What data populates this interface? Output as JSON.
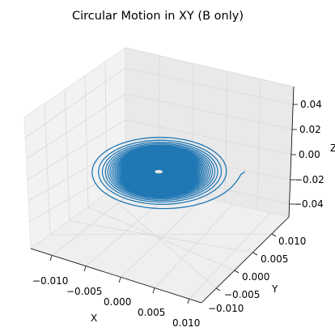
{
  "chart_data": {
    "type": "line",
    "projection": "3d",
    "title": "Circular Motion in XY (B only)",
    "xlabel": "X",
    "ylabel": "Y",
    "zlabel": "Z",
    "xticks": [
      "−0.010",
      "−0.005",
      "0.000",
      "0.005",
      "0.010"
    ],
    "yticks": [
      "0.010",
      "0.005",
      "0.000",
      "−0.005",
      "−0.010"
    ],
    "zticks": [
      "0.04",
      "0.02",
      "0.00",
      "−0.02",
      "−0.04"
    ],
    "xlim": [
      -0.0135,
      0.0135
    ],
    "ylim": [
      -0.0135,
      0.0135
    ],
    "zlim": [
      -0.05,
      0.05
    ],
    "grid": true,
    "series": [
      {
        "color": "#1f77b4",
        "shape": "spiral of circles centered at origin in z=0 plane",
        "outer_radius": 0.0118,
        "inner_radius": 0.0006,
        "z": 0.0
      }
    ]
  }
}
